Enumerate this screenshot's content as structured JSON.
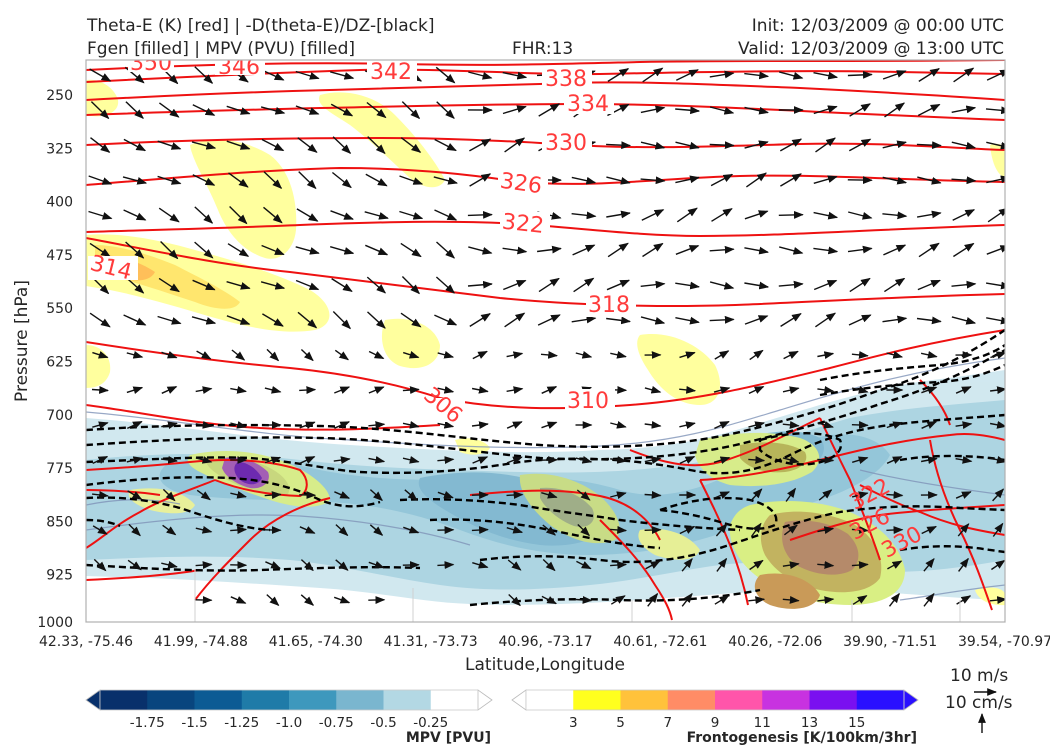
{
  "header": {
    "line1_left": "Theta-E (K) [red] | -D(theta-E)/DZ-[black]",
    "line2_left": "Fgen [filled] | MPV (PVU) [filled]",
    "fhr": "FHR:13",
    "init": "Init: 12/03/2009 @ 00:00 UTC",
    "valid": "Valid: 12/03/2009 @ 13:00 UTC"
  },
  "chart_data": {
    "type": "cross-section",
    "ylabel": "Pressure [hPa]",
    "xlabel": "Latitude,Longitude",
    "y_ticks": [
      "250",
      "325",
      "400",
      "475",
      "550",
      "625",
      "700",
      "775",
      "850",
      "925",
      "1000"
    ],
    "y_axis": "inverted pressure",
    "x_ticks": [
      "42.33, -75.46",
      "41.99, -74.88",
      "41.65, -74.30",
      "41.31, -73.73",
      "40.96, -73.17",
      "40.61, -72.61",
      "40.26, -72.06",
      "39.90, -71.51",
      "39.54, -70.97"
    ],
    "theta_e_contours": [
      {
        "value": 306,
        "label": "306"
      },
      {
        "value": 310,
        "label": "310"
      },
      {
        "value": 314,
        "label": "314"
      },
      {
        "value": 318,
        "label": "318"
      },
      {
        "value": 322,
        "label": "322"
      },
      {
        "value": 326,
        "label": "326"
      },
      {
        "value": 330,
        "label": "330"
      },
      {
        "value": 334,
        "label": "334"
      },
      {
        "value": 338,
        "label": "338"
      },
      {
        "value": 342,
        "label": "342"
      },
      {
        "value": 346,
        "label": "346"
      },
      {
        "value": 350,
        "label": "350"
      }
    ],
    "lower_right_labels": [
      "322",
      "326",
      "330"
    ],
    "mpv_colorbar": {
      "title": "MPV [PVU]",
      "ticks": [
        "-1.75",
        "-1.5",
        "-1.25",
        "-1.0",
        "-0.75",
        "-0.5",
        "-0.25"
      ],
      "colors": [
        "#08306b",
        "#08457e",
        "#0c5b94",
        "#1f7ba8",
        "#3e98bd",
        "#7ab6cf",
        "#b3d8e4",
        "#ffffff"
      ]
    },
    "fgen_colorbar": {
      "title": "Frontogenesis [K/100km/3hr]",
      "ticks": [
        "3",
        "5",
        "7",
        "9",
        "11",
        "13",
        "15"
      ],
      "colors": [
        "#ffffff",
        "#ffff1e",
        "#ffc23b",
        "#ff8c66",
        "#ff55aa",
        "#c832e0",
        "#7a10f0",
        "#2a10ff"
      ]
    },
    "wind_key": {
      "horizontal": "10 m/s",
      "vertical": "10 cm/s"
    }
  },
  "colors": {
    "theta_e": "#ee1111",
    "isolabel": "#ff4040",
    "stability": "#000000",
    "frame": "#b0b0b0"
  }
}
